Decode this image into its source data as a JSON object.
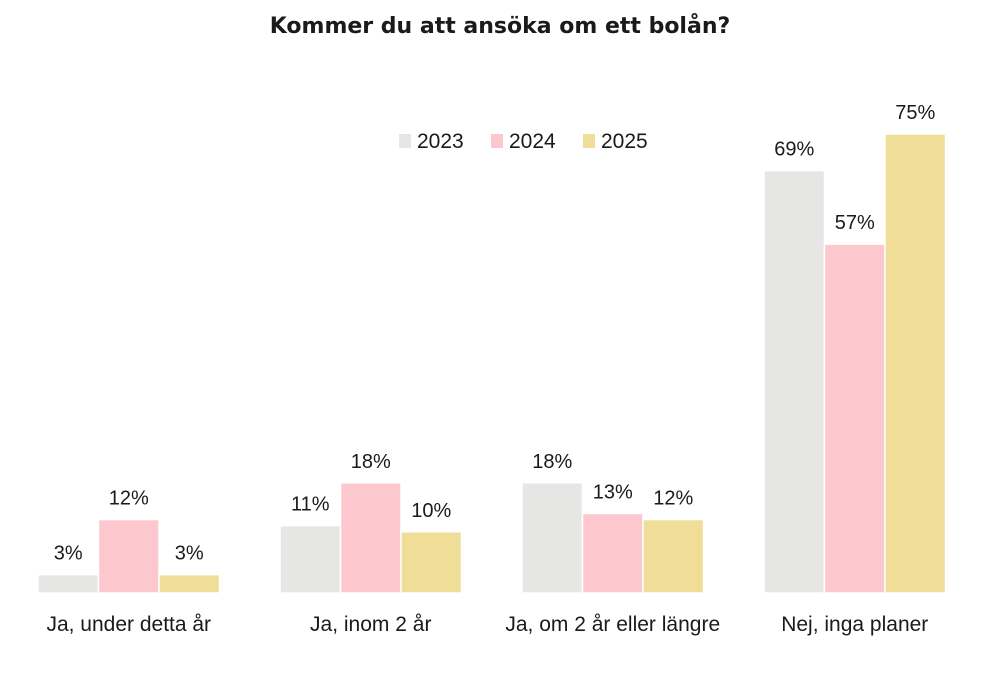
{
  "chart_data": {
    "type": "bar",
    "title": "Kommer du att ansöka om ett bolån?",
    "xlabel": "",
    "ylabel": "",
    "ylim": [
      0,
      80
    ],
    "grid": false,
    "legend_position": "top-center",
    "value_suffix": "%",
    "categories": [
      "Ja, under detta år",
      "Ja, inom 2 år",
      "Ja, om 2 år eller längre",
      "Nej, inga planer"
    ],
    "series": [
      {
        "name": "2023",
        "color": "#e6e6e4",
        "values": [
          3,
          11,
          18,
          69
        ]
      },
      {
        "name": "2024",
        "color": "#fcc7cd",
        "values": [
          12,
          18,
          13,
          57
        ]
      },
      {
        "name": "2025",
        "color": "#efdd98",
        "values": [
          3,
          10,
          12,
          75
        ]
      }
    ]
  }
}
